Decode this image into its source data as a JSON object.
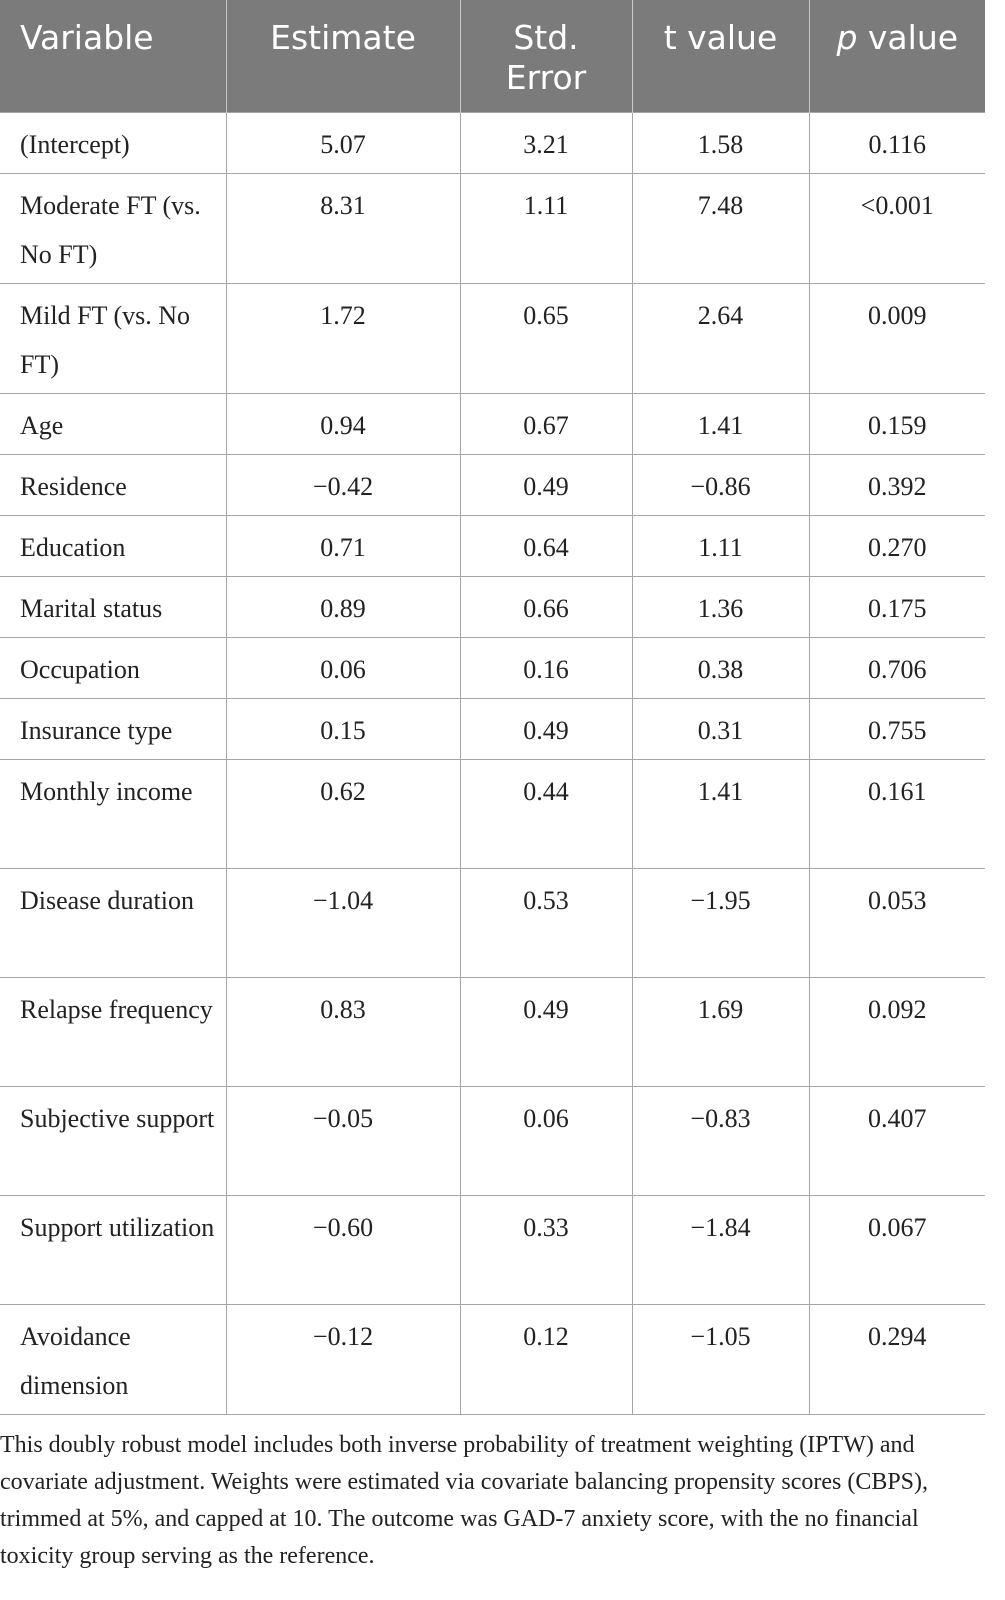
{
  "table": {
    "headers": [
      "Variable",
      "Estimate",
      "Std.\nError",
      "t value",
      "value"
    ],
    "p_letter": "p",
    "rows": [
      {
        "variable": "(Intercept)",
        "estimate": "5.07",
        "se": "3.21",
        "t": "1.58",
        "p": "0.116"
      },
      {
        "variable": "Moderate FT (vs. No FT)",
        "estimate": "8.31",
        "se": "1.11",
        "t": "7.48",
        "p": "<0.001"
      },
      {
        "variable": "Mild FT (vs. No FT)",
        "estimate": "1.72",
        "se": "0.65",
        "t": "2.64",
        "p": "0.009"
      },
      {
        "variable": "Age",
        "estimate": "0.94",
        "se": "0.67",
        "t": "1.41",
        "p": "0.159"
      },
      {
        "variable": "Residence",
        "estimate": "−0.42",
        "se": "0.49",
        "t": "−0.86",
        "p": "0.392"
      },
      {
        "variable": "Education",
        "estimate": "0.71",
        "se": "0.64",
        "t": "1.11",
        "p": "0.270"
      },
      {
        "variable": "Marital status",
        "estimate": "0.89",
        "se": "0.66",
        "t": "1.36",
        "p": "0.175"
      },
      {
        "variable": "Occupation",
        "estimate": "0.06",
        "se": "0.16",
        "t": "0.38",
        "p": "0.706"
      },
      {
        "variable": "Insurance type",
        "estimate": "0.15",
        "se": "0.49",
        "t": "0.31",
        "p": "0.755"
      },
      {
        "variable": "Monthly income",
        "estimate": "0.62",
        "se": "0.44",
        "t": "1.41",
        "p": "0.161"
      },
      {
        "variable": "Disease duration",
        "estimate": "−1.04",
        "se": "0.53",
        "t": "−1.95",
        "p": "0.053"
      },
      {
        "variable": "Relapse frequency",
        "estimate": "0.83",
        "se": "0.49",
        "t": "1.69",
        "p": "0.092"
      },
      {
        "variable": "Subjective support",
        "estimate": "−0.05",
        "se": "0.06",
        "t": "−0.83",
        "p": "0.407"
      },
      {
        "variable": "Support utilization",
        "estimate": "−0.60",
        "se": "0.33",
        "t": "−1.84",
        "p": "0.067"
      },
      {
        "variable": "Avoidance dimension",
        "estimate": "−0.12",
        "se": "0.12",
        "t": "−1.05",
        "p": "0.294"
      }
    ]
  },
  "footnote": "This doubly robust model includes both inverse probability of treatment weighting (IPTW) and covariate adjustment. Weights were estimated via covariate balancing propensity scores (CBPS), trimmed at 5%, and capped at 10. The outcome was GAD-7 anxiety score, with the no financial toxicity group serving as the reference."
}
